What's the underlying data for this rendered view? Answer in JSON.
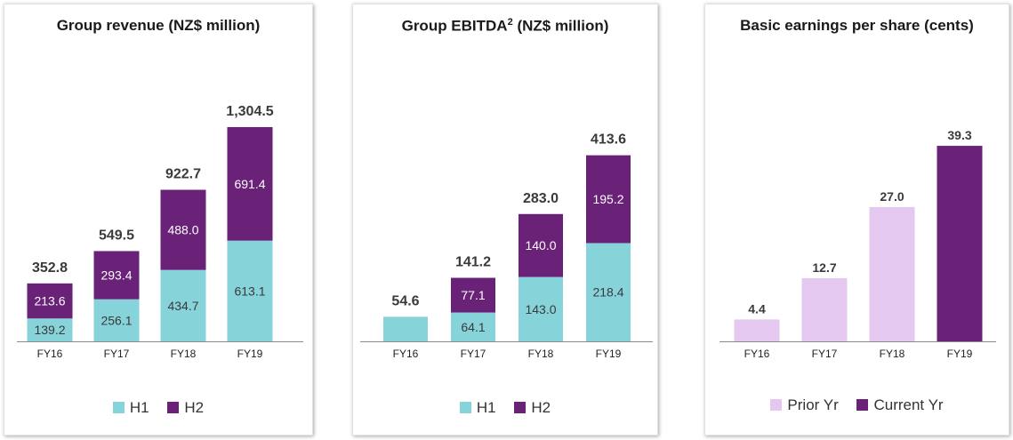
{
  "colors": {
    "h1": "#86d3da",
    "h2": "#6a2279",
    "prior": "#e4c8ef",
    "current": "#6a2279",
    "axis": "#8a8a8a"
  },
  "chart_data": [
    {
      "type": "bar",
      "stacked": true,
      "title": "Group revenue (NZ$ million)",
      "categories": [
        "FY16",
        "FY17",
        "FY18",
        "FY19"
      ],
      "series": [
        {
          "name": "H1",
          "values": [
            139.2,
            256.1,
            434.7,
            613.1
          ],
          "labels": [
            "139.2",
            "256.1",
            "434.7",
            "613.1"
          ]
        },
        {
          "name": "H2",
          "values": [
            213.6,
            293.4,
            488.0,
            691.4
          ],
          "labels": [
            "213.6",
            "293.4",
            "488.0",
            "691.4"
          ]
        }
      ],
      "totals": [
        "352.8",
        "549.5",
        "922.7",
        "1,304.5"
      ],
      "ylim": [
        0,
        1575
      ],
      "legend": "bottom"
    },
    {
      "type": "bar",
      "stacked": true,
      "title": "Group EBITDA",
      "title_sup": "2",
      "title_suffix": " (NZ$ million)",
      "categories": [
        "FY16",
        "FY17",
        "FY18",
        "FY19"
      ],
      "series": [
        {
          "name": "H1",
          "values": [
            54.6,
            64.1,
            143.0,
            218.4
          ],
          "labels": [
            "",
            "64.1",
            "143.0",
            "218.4"
          ]
        },
        {
          "name": "H2",
          "values": [
            0,
            77.1,
            140.0,
            195.2
          ],
          "labels": [
            "",
            "77.1",
            "140.0",
            "195.2"
          ]
        }
      ],
      "totals": [
        "54.6",
        "141.2",
        "283.0",
        "413.6"
      ],
      "ylim": [
        0,
        575
      ],
      "legend": "bottom"
    },
    {
      "type": "bar",
      "title": "Basic earnings per share (cents)",
      "categories": [
        "FY16",
        "FY17",
        "FY18",
        "FY19"
      ],
      "values": [
        4.4,
        12.7,
        27.0,
        39.3
      ],
      "labels": [
        "4.4",
        "12.7",
        "27.0",
        "39.3"
      ],
      "bar_role": [
        "Prior Yr",
        "Prior Yr",
        "Prior Yr",
        "Current Yr"
      ],
      "legend_entries": [
        "Prior Yr",
        "Current Yr"
      ],
      "ylim": [
        0,
        52
      ],
      "legend": "bottom"
    }
  ]
}
